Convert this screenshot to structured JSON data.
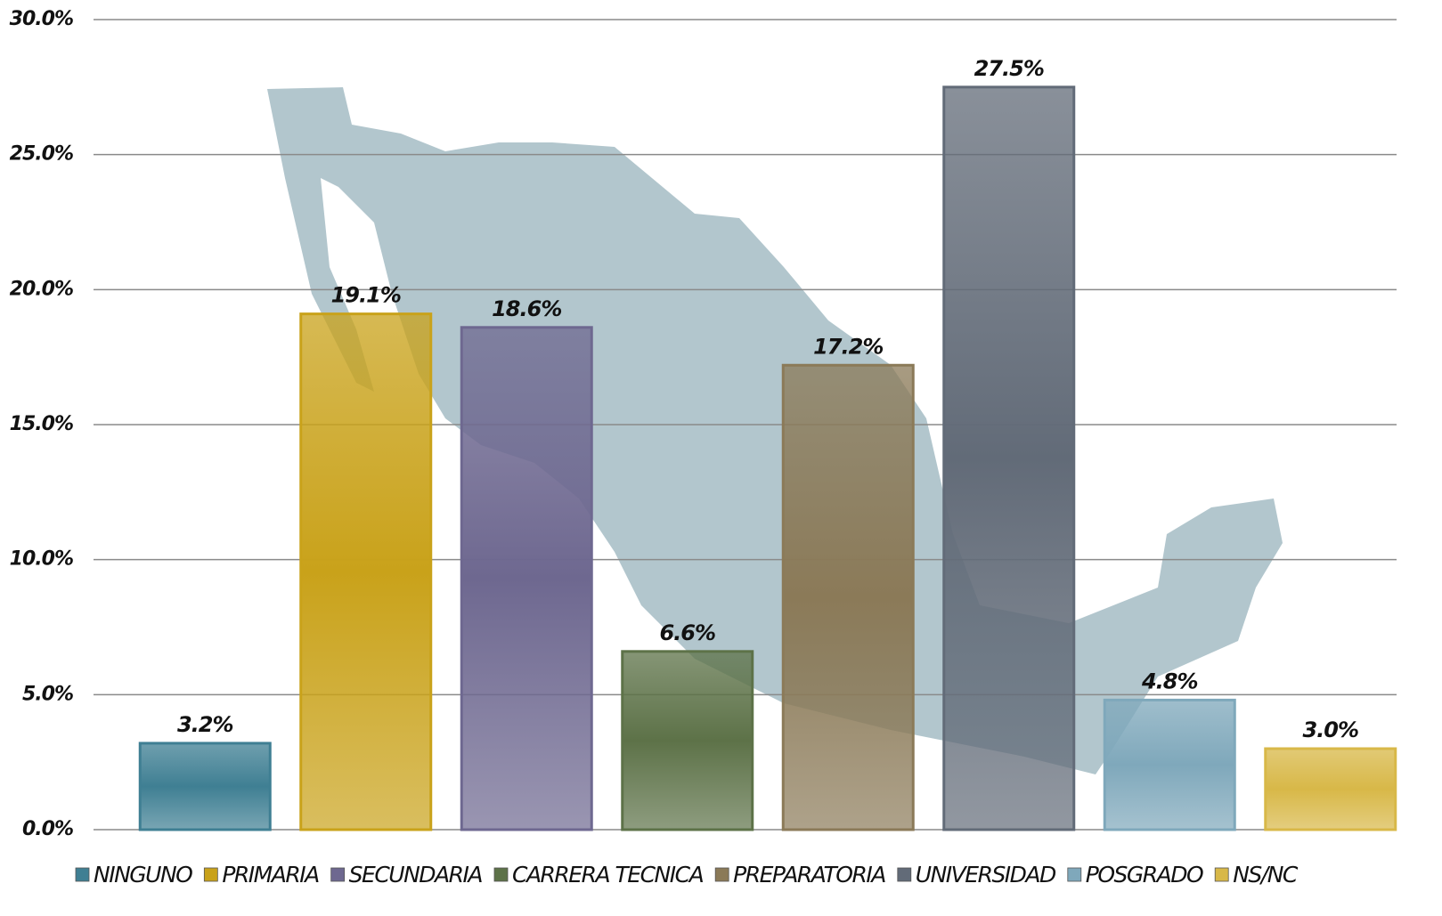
{
  "chart_data": {
    "type": "bar",
    "categories": [
      "NINGUNO",
      "PRIMARIA",
      "SECUNDARIA",
      "CARRERA TECNICA",
      "PREPARATORIA",
      "UNIVERSIDAD",
      "POSGRADO",
      "NS/NC"
    ],
    "values": [
      3.2,
      19.1,
      18.6,
      6.6,
      17.2,
      27.5,
      4.8,
      3.0
    ],
    "value_labels": [
      "3.2%",
      "19.1%",
      "18.6%",
      "6.6%",
      "17.2%",
      "27.5%",
      "4.8%",
      "3.0%"
    ],
    "colors": [
      "#3f7f93",
      "#c9a21a",
      "#6e6890",
      "#5d7248",
      "#8b7a58",
      "#626b78",
      "#7fa8bb",
      "#d8b848"
    ],
    "ylim": [
      0,
      30
    ],
    "yticks": [
      {
        "value": 0,
        "label": "0.0%"
      },
      {
        "value": 5,
        "label": "5.0%"
      },
      {
        "value": 10,
        "label": "10.0%"
      },
      {
        "value": 15,
        "label": "15.0%"
      },
      {
        "value": 20,
        "label": "20.0%"
      },
      {
        "value": 25,
        "label": "25.0%"
      },
      {
        "value": 30,
        "label": "30.0%"
      }
    ],
    "grid": true,
    "legend": "bottom"
  }
}
